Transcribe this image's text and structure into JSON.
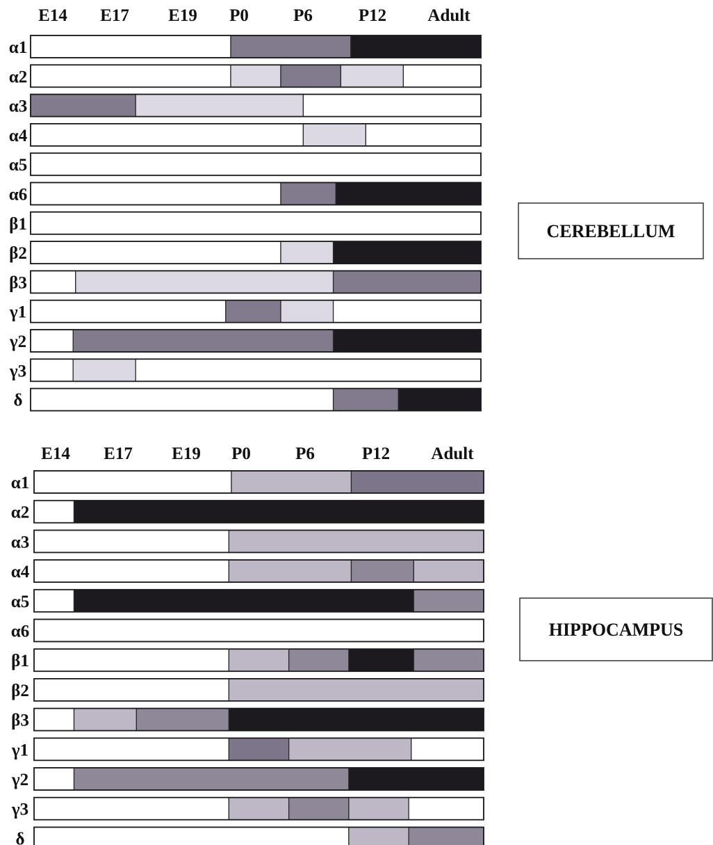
{
  "chart_data": [
    {
      "type": "table",
      "region": "CEREBELLUM",
      "stages": [
        "E14",
        "E17",
        "E19",
        "P0",
        "P6",
        "P12",
        "Adult"
      ],
      "levels": {
        "0": "#ffffff",
        "1": "#dcd8e4",
        "2": "#827b8e",
        "3": "#1c1a1e"
      },
      "rows": [
        {
          "label": "α1",
          "segments": [
            [
              0,
              4,
              0
            ],
            [
              4,
              6.4,
              2
            ],
            [
              6.4,
              9,
              3
            ]
          ]
        },
        {
          "label": "α2",
          "segments": [
            [
              0,
              4,
              0
            ],
            [
              4,
              5,
              1
            ],
            [
              5,
              6.2,
              2
            ],
            [
              6.2,
              7.45,
              1
            ],
            [
              7.45,
              9,
              0
            ]
          ]
        },
        {
          "label": "α3",
          "segments": [
            [
              0,
              2.1,
              2
            ],
            [
              2.1,
              5.45,
              1
            ],
            [
              5.45,
              9,
              0
            ]
          ]
        },
        {
          "label": "α4",
          "segments": [
            [
              0,
              5.45,
              0
            ],
            [
              5.45,
              6.7,
              1
            ],
            [
              6.7,
              9,
              0
            ]
          ]
        },
        {
          "label": "α5",
          "segments": [
            [
              0,
              9,
              0
            ]
          ]
        },
        {
          "label": "α6",
          "segments": [
            [
              0,
              5,
              0
            ],
            [
              5,
              6.1,
              2
            ],
            [
              6.1,
              9,
              3
            ]
          ]
        },
        {
          "label": "β1",
          "segments": [
            [
              0,
              9,
              0
            ]
          ]
        },
        {
          "label": "β2",
          "segments": [
            [
              0,
              5,
              0
            ],
            [
              5,
              6.05,
              1
            ],
            [
              6.05,
              9,
              3
            ]
          ]
        },
        {
          "label": "β3",
          "segments": [
            [
              0,
              0.9,
              0
            ],
            [
              0.9,
              6.05,
              1
            ],
            [
              6.05,
              9,
              2
            ]
          ]
        },
        {
          "label": "γ1",
          "segments": [
            [
              0,
              3.9,
              0
            ],
            [
              3.9,
              5,
              2
            ],
            [
              5,
              6.05,
              1
            ],
            [
              6.05,
              9,
              0
            ]
          ]
        },
        {
          "label": "γ2",
          "segments": [
            [
              0,
              0.85,
              0
            ],
            [
              0.85,
              6.05,
              2
            ],
            [
              6.05,
              9,
              3
            ]
          ]
        },
        {
          "label": "γ3",
          "segments": [
            [
              0,
              0.85,
              0
            ],
            [
              0.85,
              2.1,
              1
            ],
            [
              2.1,
              9,
              0
            ]
          ]
        },
        {
          "label": "δ",
          "segments": [
            [
              0,
              6.05,
              0
            ],
            [
              6.05,
              7.35,
              2
            ],
            [
              7.35,
              9,
              3
            ]
          ]
        }
      ]
    },
    {
      "type": "table",
      "region": "HIPPOCAMPUS",
      "stages": [
        "E14",
        "E17",
        "E19",
        "P0",
        "P6",
        "P12",
        "Adult"
      ],
      "levels": {
        "0": "#ffffff",
        "1": "#bdb7c6",
        "2": "#8f8899",
        "3": "#1c1a1e",
        "m": "#7d7589"
      },
      "rows": [
        {
          "label": "α1",
          "segments": [
            [
              0,
              3.95,
              0
            ],
            [
              3.95,
              6.35,
              1
            ],
            [
              6.35,
              9,
              "m"
            ]
          ]
        },
        {
          "label": "α2",
          "segments": [
            [
              0,
              0.8,
              0
            ],
            [
              0.8,
              9,
              3
            ]
          ]
        },
        {
          "label": "α3",
          "segments": [
            [
              0,
              3.9,
              0
            ],
            [
              3.9,
              9,
              1
            ]
          ]
        },
        {
          "label": "α4",
          "segments": [
            [
              0,
              3.9,
              0
            ],
            [
              3.9,
              6.35,
              1
            ],
            [
              6.35,
              7.6,
              2
            ],
            [
              7.6,
              9,
              1
            ]
          ]
        },
        {
          "label": "α5",
          "segments": [
            [
              0,
              0.8,
              0
            ],
            [
              0.8,
              7.6,
              3
            ],
            [
              7.6,
              9,
              2
            ]
          ]
        },
        {
          "label": "α6",
          "segments": [
            [
              0,
              9,
              0
            ]
          ]
        },
        {
          "label": "β1",
          "segments": [
            [
              0,
              3.9,
              0
            ],
            [
              3.9,
              5.1,
              1
            ],
            [
              5.1,
              6.3,
              2
            ],
            [
              6.3,
              7.6,
              3
            ],
            [
              7.6,
              9,
              2
            ]
          ]
        },
        {
          "label": "β2",
          "segments": [
            [
              0,
              3.9,
              0
            ],
            [
              3.9,
              9,
              1
            ]
          ]
        },
        {
          "label": "β3",
          "segments": [
            [
              0,
              0.8,
              0
            ],
            [
              0.8,
              2.05,
              1
            ],
            [
              2.05,
              3.9,
              2
            ],
            [
              3.9,
              9,
              3
            ]
          ]
        },
        {
          "label": "γ1",
          "segments": [
            [
              0,
              3.9,
              0
            ],
            [
              3.9,
              5.1,
              "m"
            ],
            [
              5.1,
              7.55,
              1
            ],
            [
              7.55,
              9,
              0
            ]
          ]
        },
        {
          "label": "γ2",
          "segments": [
            [
              0,
              0.8,
              0
            ],
            [
              0.8,
              6.3,
              2
            ],
            [
              6.3,
              9,
              3
            ]
          ]
        },
        {
          "label": "γ3",
          "segments": [
            [
              0,
              3.9,
              0
            ],
            [
              3.9,
              5.1,
              1
            ],
            [
              5.1,
              6.3,
              2
            ],
            [
              6.3,
              7.5,
              1
            ],
            [
              7.5,
              9,
              0
            ]
          ]
        },
        {
          "label": "δ",
          "segments": [
            [
              0,
              6.3,
              0
            ],
            [
              6.3,
              7.5,
              1
            ],
            [
              7.5,
              9,
              2
            ]
          ]
        }
      ]
    }
  ]
}
